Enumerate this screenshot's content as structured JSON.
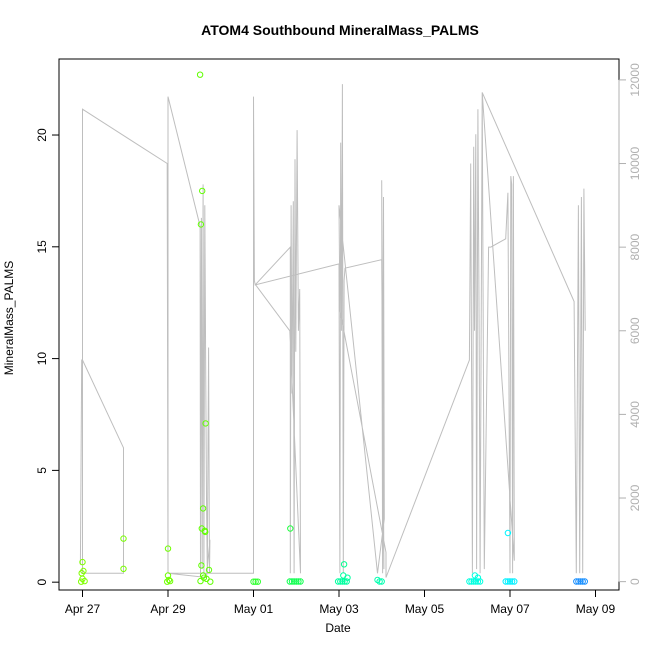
{
  "chart_data": {
    "type": "scatter",
    "title": "ATOM4 Southbound MineralMass_PALMS",
    "xlabel": "Date",
    "ylabel": "MineralMass_PALMS",
    "x_ticks": [
      {
        "day": 0,
        "label": "Apr 27"
      },
      {
        "day": 2,
        "label": "Apr 29"
      },
      {
        "day": 4,
        "label": "May 01"
      },
      {
        "day": 6,
        "label": "May 03"
      },
      {
        "day": 8,
        "label": "May 05"
      },
      {
        "day": 10,
        "label": "May 07"
      },
      {
        "day": 12,
        "label": "May 09"
      }
    ],
    "xlim": [
      -0.55,
      12.55
    ],
    "ylim": [
      -0.35,
      23.4
    ],
    "y_ticks": [
      0,
      5,
      10,
      15,
      20
    ],
    "y2lim": [
      -200,
      12500
    ],
    "y2_ticks": [
      0,
      2000,
      4000,
      6000,
      8000,
      10000,
      12000
    ],
    "grid": false,
    "legend": "none",
    "colors": {
      "altitude_line": "#bebebe",
      "right_axis": "#b0b0b0"
    },
    "points": [
      {
        "d": 0.0,
        "y": 0.9,
        "c": "#80ff00"
      },
      {
        "d": -0.02,
        "y": 0.4,
        "c": "#80ff00"
      },
      {
        "d": 0.02,
        "y": 0.5,
        "c": "#80ff00"
      },
      {
        "d": 0.0,
        "y": 0.15,
        "c": "#80ff00"
      },
      {
        "d": 0.05,
        "y": 0.05,
        "c": "#80ff00"
      },
      {
        "d": -0.03,
        "y": 0.02,
        "c": "#80ff00"
      },
      {
        "d": 0.96,
        "y": 1.95,
        "c": "#78ff00"
      },
      {
        "d": 0.96,
        "y": 0.6,
        "c": "#78ff00"
      },
      {
        "d": 2.0,
        "y": 1.5,
        "c": "#70ff00"
      },
      {
        "d": 2.0,
        "y": 0.3,
        "c": "#70ff00"
      },
      {
        "d": 2.02,
        "y": 0.1,
        "c": "#70ff00"
      },
      {
        "d": 2.05,
        "y": 0.05,
        "c": "#70ff00"
      },
      {
        "d": 1.98,
        "y": 0.02,
        "c": "#70ff00"
      },
      {
        "d": 2.75,
        "y": 22.7,
        "c": "#60ff00"
      },
      {
        "d": 2.8,
        "y": 17.5,
        "c": "#60ff00"
      },
      {
        "d": 2.77,
        "y": 16.0,
        "c": "#60ff00"
      },
      {
        "d": 2.79,
        "y": 2.4,
        "c": "#60ff00"
      },
      {
        "d": 2.86,
        "y": 2.3,
        "c": "#60ff00"
      },
      {
        "d": 2.82,
        "y": 3.3,
        "c": "#60ff00"
      },
      {
        "d": 2.87,
        "y": 2.25,
        "c": "#60ff00"
      },
      {
        "d": 2.88,
        "y": 7.1,
        "c": "#60ff00"
      },
      {
        "d": 2.78,
        "y": 0.75,
        "c": "#60ff00"
      },
      {
        "d": 2.96,
        "y": 0.55,
        "c": "#60ff00"
      },
      {
        "d": 2.84,
        "y": 0.2,
        "c": "#60ff00"
      },
      {
        "d": 2.9,
        "y": 0.15,
        "c": "#60ff00"
      },
      {
        "d": 2.76,
        "y": 0.05,
        "c": "#60ff00"
      },
      {
        "d": 2.99,
        "y": 0.02,
        "c": "#60ff00"
      },
      {
        "d": 2.82,
        "y": 0.3,
        "c": "#60ff00"
      },
      {
        "d": 4.0,
        "y": 0.02,
        "c": "#30ff30"
      },
      {
        "d": 4.05,
        "y": 0.02,
        "c": "#30ff30"
      },
      {
        "d": 4.1,
        "y": 0.02,
        "c": "#30ff30"
      },
      {
        "d": 4.86,
        "y": 2.4,
        "c": "#20ff40"
      },
      {
        "d": 4.85,
        "y": 0.03,
        "c": "#10ff50"
      },
      {
        "d": 4.9,
        "y": 0.03,
        "c": "#10ff50"
      },
      {
        "d": 4.95,
        "y": 0.03,
        "c": "#10ff50"
      },
      {
        "d": 5.0,
        "y": 0.03,
        "c": "#10ff50"
      },
      {
        "d": 5.05,
        "y": 0.03,
        "c": "#10ff50"
      },
      {
        "d": 5.1,
        "y": 0.03,
        "c": "#10ff50"
      },
      {
        "d": 6.12,
        "y": 0.8,
        "c": "#00ff90"
      },
      {
        "d": 5.98,
        "y": 0.03,
        "c": "#00ffa0"
      },
      {
        "d": 6.03,
        "y": 0.03,
        "c": "#00ffa0"
      },
      {
        "d": 6.08,
        "y": 0.03,
        "c": "#00ffa0"
      },
      {
        "d": 6.13,
        "y": 0.03,
        "c": "#00ffa0"
      },
      {
        "d": 6.18,
        "y": 0.03,
        "c": "#00ffa0"
      },
      {
        "d": 6.1,
        "y": 0.3,
        "c": "#00ffa0"
      },
      {
        "d": 6.2,
        "y": 0.2,
        "c": "#00ffa0"
      },
      {
        "d": 6.9,
        "y": 0.1,
        "c": "#00ffb0"
      },
      {
        "d": 6.95,
        "y": 0.03,
        "c": "#00ffb0"
      },
      {
        "d": 7.0,
        "y": 0.03,
        "c": "#00ffb0"
      },
      {
        "d": 9.05,
        "y": 0.03,
        "c": "#00ffe0"
      },
      {
        "d": 9.1,
        "y": 0.03,
        "c": "#00ffe0"
      },
      {
        "d": 9.15,
        "y": 0.03,
        "c": "#00ffe0"
      },
      {
        "d": 9.2,
        "y": 0.03,
        "c": "#00ffe0"
      },
      {
        "d": 9.25,
        "y": 0.03,
        "c": "#00ffe0"
      },
      {
        "d": 9.3,
        "y": 0.03,
        "c": "#00ffe0"
      },
      {
        "d": 9.18,
        "y": 0.3,
        "c": "#00ffe0"
      },
      {
        "d": 9.25,
        "y": 0.2,
        "c": "#00ffe0"
      },
      {
        "d": 9.95,
        "y": 2.2,
        "c": "#00f5ff"
      },
      {
        "d": 9.9,
        "y": 0.03,
        "c": "#00f0ff"
      },
      {
        "d": 9.95,
        "y": 0.03,
        "c": "#00f0ff"
      },
      {
        "d": 10.0,
        "y": 0.03,
        "c": "#00f0ff"
      },
      {
        "d": 10.05,
        "y": 0.03,
        "c": "#00f0ff"
      },
      {
        "d": 10.1,
        "y": 0.03,
        "c": "#00f0ff"
      },
      {
        "d": 11.55,
        "y": 0.03,
        "c": "#1a90ff"
      },
      {
        "d": 11.6,
        "y": 0.03,
        "c": "#1a90ff"
      },
      {
        "d": 11.65,
        "y": 0.03,
        "c": "#1a90ff"
      },
      {
        "d": 11.7,
        "y": 0.03,
        "c": "#1a90ff"
      },
      {
        "d": 11.75,
        "y": 0.03,
        "c": "#1a90ff"
      }
    ],
    "altitude_line": [
      [
        -0.05,
        400
      ],
      [
        -0.02,
        5300
      ],
      [
        0.0,
        5300
      ],
      [
        0.96,
        3200
      ],
      [
        0.96,
        200
      ],
      [
        0.97,
        200
      ],
      [
        0.0,
        200
      ],
      [
        0.0,
        11300
      ],
      [
        1.98,
        10000
      ],
      [
        2.0,
        200
      ],
      [
        2.0,
        11600
      ],
      [
        2.75,
        8500
      ],
      [
        2.76,
        200
      ],
      [
        2.78,
        8700
      ],
      [
        2.8,
        300
      ],
      [
        2.82,
        9500
      ],
      [
        2.84,
        200
      ],
      [
        2.86,
        9000
      ],
      [
        2.88,
        5500
      ],
      [
        2.9,
        2000
      ],
      [
        2.92,
        200
      ],
      [
        2.95,
        5600
      ],
      [
        2.97,
        200
      ],
      [
        2.98,
        1000
      ],
      [
        2.9,
        100
      ],
      [
        2.0,
        200
      ],
      [
        4.0,
        200
      ],
      [
        4.0,
        11600
      ],
      [
        4.02,
        7200
      ],
      [
        4.04,
        7100
      ],
      [
        4.86,
        8000
      ],
      [
        4.86,
        200
      ],
      [
        4.88,
        9000
      ],
      [
        4.9,
        4500
      ],
      [
        4.93,
        9100
      ],
      [
        4.95,
        200
      ],
      [
        4.97,
        10100
      ],
      [
        4.99,
        5500
      ],
      [
        5.02,
        10800
      ],
      [
        5.05,
        6000
      ],
      [
        5.08,
        7000
      ],
      [
        5.1,
        200
      ],
      [
        4.85,
        6000
      ],
      [
        4.05,
        7100
      ],
      [
        6.0,
        7600
      ],
      [
        6.02,
        200
      ],
      [
        6.04,
        10500
      ],
      [
        6.06,
        6000
      ],
      [
        6.08,
        11900
      ],
      [
        6.1,
        200
      ],
      [
        6.12,
        7200
      ],
      [
        6.14,
        7500
      ],
      [
        7.0,
        7700
      ],
      [
        7.05,
        300
      ],
      [
        7.0,
        9600
      ],
      [
        7.02,
        200
      ],
      [
        7.04,
        9200
      ],
      [
        7.06,
        1500
      ],
      [
        6.9,
        200
      ],
      [
        6.0,
        9000
      ],
      [
        6.02,
        6500
      ],
      [
        7.1,
        700
      ],
      [
        7.1,
        100
      ],
      [
        9.05,
        5300
      ],
      [
        9.08,
        10000
      ],
      [
        9.12,
        200
      ],
      [
        9.15,
        10400
      ],
      [
        9.17,
        6000
      ],
      [
        9.2,
        10700
      ],
      [
        9.22,
        300
      ],
      [
        9.25,
        11300
      ],
      [
        9.28,
        5800
      ],
      [
        9.3,
        200
      ],
      [
        9.35,
        11700
      ],
      [
        9.4,
        300
      ],
      [
        9.5,
        8000
      ],
      [
        9.55,
        8000
      ],
      [
        9.9,
        8200
      ],
      [
        9.95,
        9300
      ],
      [
        10.0,
        200
      ],
      [
        10.02,
        9700
      ],
      [
        10.04,
        9500
      ],
      [
        10.06,
        200
      ],
      [
        10.08,
        9700
      ],
      [
        10.1,
        500
      ],
      [
        9.35,
        11700
      ],
      [
        11.5,
        6700
      ],
      [
        11.55,
        200
      ],
      [
        11.6,
        9000
      ],
      [
        11.63,
        200
      ],
      [
        11.67,
        9200
      ],
      [
        11.7,
        200
      ],
      [
        11.73,
        9400
      ],
      [
        11.76,
        6000
      ]
    ]
  }
}
